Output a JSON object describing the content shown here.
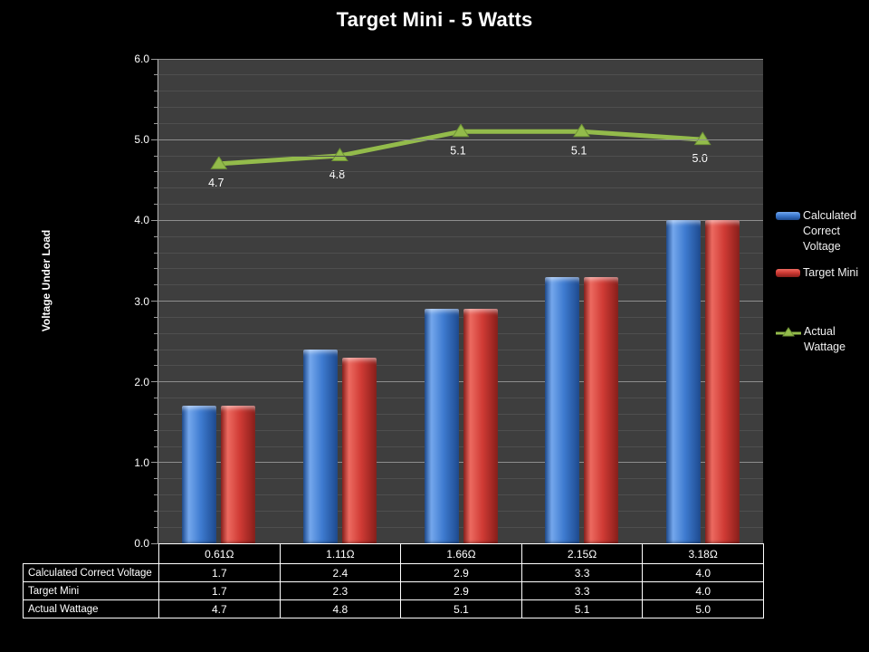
{
  "chart_data": {
    "type": "combo",
    "title": "Target Mini - 5 Watts",
    "ylabel": "Voltage Under Load",
    "ylim": [
      0,
      6
    ],
    "ytick_interval": 1.0,
    "yminor_interval": 0.2,
    "ytick_labels": [
      "0.0",
      "1.0",
      "2.0",
      "3.0",
      "4.0",
      "5.0",
      "6.0"
    ],
    "grid": true,
    "legend_position": "right",
    "data_table_shown": true,
    "categories": [
      "0.61Ω",
      "1.11Ω",
      "1.66Ω",
      "2.15Ω",
      "3.18Ω"
    ],
    "series": [
      {
        "name": "Calculated Correct Voltage",
        "type": "bar",
        "color": "#3e7bd0",
        "values": [
          1.7,
          2.4,
          2.9,
          3.3,
          4.0
        ]
      },
      {
        "name": "Target Mini",
        "type": "bar",
        "color": "#d03b35",
        "values": [
          1.7,
          2.3,
          2.9,
          3.3,
          4.0
        ]
      },
      {
        "name": "Actual Wattage",
        "type": "line",
        "color": "#93bb4b",
        "data_labels": true,
        "values": [
          4.7,
          4.8,
          5.1,
          5.1,
          5.0
        ],
        "label_texts": [
          "4.7",
          "4.8",
          "5.1",
          "5.1",
          "5.0"
        ]
      }
    ]
  },
  "colors": {
    "background": "#000000",
    "plot_background": "#3e3e3e",
    "grid_major": "#8e8e8e",
    "grid_minor": "#4f4f4f",
    "axis_line": "#b8b8b8",
    "text": "#ffffff",
    "table_border": "#ffffff",
    "bar_blue": "#3e7bd0",
    "bar_blue_light": "#74a7ec",
    "bar_blue_dark": "#1d4a8f",
    "bar_red": "#d03b35",
    "bar_red_light": "#ec6a60",
    "bar_red_dark": "#881e1a",
    "line_green": "#93bb4b",
    "line_green_dark": "#6e9235"
  }
}
